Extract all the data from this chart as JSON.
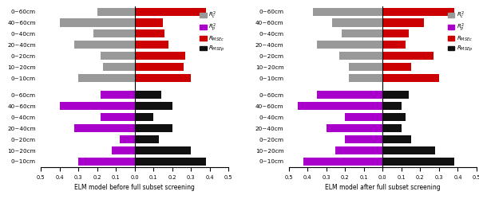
{
  "categories": [
    "0~60cm",
    "40~60cm",
    "0~40cm",
    "20~40cm",
    "0~20cm",
    "10~20cm",
    "0~10cm"
  ],
  "before": {
    "R2c": [
      0.2,
      0.4,
      0.22,
      0.32,
      0.18,
      0.17,
      0.3
    ],
    "R2p": [
      0.18,
      0.4,
      0.18,
      0.32,
      0.08,
      0.12,
      0.3
    ],
    "RMSEc": [
      0.38,
      0.15,
      0.16,
      0.18,
      0.27,
      0.26,
      0.3
    ],
    "RMSEp": [
      0.14,
      0.2,
      0.1,
      0.2,
      0.13,
      0.3,
      0.38
    ]
  },
  "after": {
    "R2c": [
      0.37,
      0.27,
      0.22,
      0.35,
      0.23,
      0.18,
      0.18
    ],
    "R2p": [
      0.35,
      0.45,
      0.2,
      0.3,
      0.2,
      0.25,
      0.42
    ],
    "RMSEc": [
      0.38,
      0.22,
      0.14,
      0.12,
      0.27,
      0.15,
      0.3
    ],
    "RMSEp": [
      0.14,
      0.1,
      0.12,
      0.1,
      0.15,
      0.28,
      0.38
    ]
  },
  "colors": {
    "R2c": "#999999",
    "R2p": "#aa00cc",
    "RMSEc": "#cc0000",
    "RMSEp": "#111111"
  },
  "xlim": 0.5,
  "xlabel_before": "ELM model before full subset screening",
  "xlabel_after": "ELM model after full subset screening",
  "legend_labels": [
    "$R_c^2$",
    "$R_p^2$",
    "$R_{MSEc}$",
    "$R_{MSEp}$"
  ]
}
